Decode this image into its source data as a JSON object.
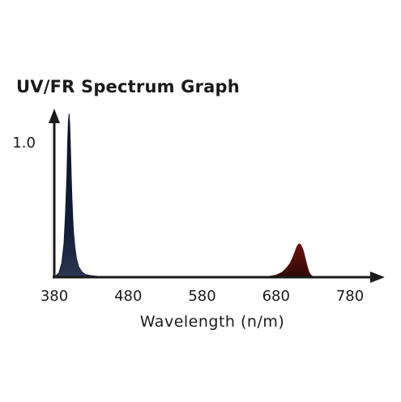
{
  "chart_data": {
    "type": "area",
    "title": "UV/FR Spectrum Graph",
    "xlabel": "Wavelength (n/m)",
    "ylabel": "",
    "xlim": [
      380,
      790
    ],
    "ylim": [
      0,
      1.0
    ],
    "x_ticks": [
      "380",
      "480",
      "580",
      "680",
      "780"
    ],
    "y_ticks": [
      "1.0"
    ],
    "grid": false,
    "series": [
      {
        "color": "#0f1830",
        "points": [
          [
            378,
            0.0
          ],
          [
            382,
            0.005
          ],
          [
            386,
            0.02
          ],
          [
            390,
            0.08
          ],
          [
            393,
            0.2
          ],
          [
            395,
            0.38
          ],
          [
            397,
            0.62
          ],
          [
            398,
            0.82
          ],
          [
            399,
            0.95
          ],
          [
            400,
            1.0
          ],
          [
            401,
            0.93
          ],
          [
            402,
            0.78
          ],
          [
            403,
            0.62
          ],
          [
            404,
            0.48
          ],
          [
            405,
            0.37
          ],
          [
            406,
            0.28
          ],
          [
            408,
            0.18
          ],
          [
            410,
            0.11
          ],
          [
            413,
            0.06
          ],
          [
            417,
            0.03
          ],
          [
            422,
            0.012
          ],
          [
            430,
            0.005
          ],
          [
            440,
            0.0
          ]
        ]
      },
      {
        "color": "#5a0e0a",
        "points": [
          [
            670,
            0.0
          ],
          [
            680,
            0.008
          ],
          [
            688,
            0.025
          ],
          [
            694,
            0.05
          ],
          [
            699,
            0.08
          ],
          [
            703,
            0.12
          ],
          [
            706,
            0.155
          ],
          [
            708,
            0.18
          ],
          [
            710,
            0.195
          ],
          [
            712,
            0.2
          ],
          [
            714,
            0.19
          ],
          [
            716,
            0.17
          ],
          [
            718,
            0.14
          ],
          [
            720,
            0.1
          ],
          [
            722,
            0.065
          ],
          [
            724,
            0.035
          ],
          [
            726,
            0.015
          ],
          [
            728,
            0.005
          ],
          [
            730,
            0.0
          ]
        ]
      }
    ]
  }
}
